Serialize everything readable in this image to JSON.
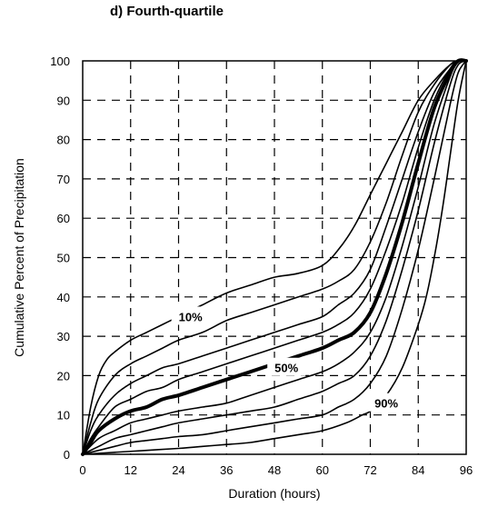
{
  "chart_data": {
    "type": "line",
    "title": "d) Fourth-quartile",
    "xlabel": "Duration (hours)",
    "ylabel": "Cumulative Percent of Precipitation",
    "xlim": [
      0,
      96
    ],
    "ylim": [
      0,
      100
    ],
    "x_ticks": [
      "0",
      "12",
      "24",
      "36",
      "48",
      "60",
      "72",
      "84",
      "96"
    ],
    "y_ticks": [
      "0",
      "10",
      "20",
      "30",
      "40",
      "50",
      "60",
      "70",
      "80",
      "90",
      "100"
    ],
    "grid": "dashed",
    "curve_labels": [
      {
        "text": "10%",
        "series": 0,
        "x": 27,
        "y": 35
      },
      {
        "text": "50%",
        "series": 4,
        "x": 51,
        "y": 22
      },
      {
        "text": "90%",
        "series": 8,
        "x": 76,
        "y": 13
      }
    ],
    "series": [
      {
        "x": [
          0,
          2,
          4,
          6,
          8,
          12,
          16,
          20,
          24,
          30,
          36,
          42,
          48,
          54,
          60,
          64,
          68,
          72,
          76,
          80,
          84,
          88,
          92,
          94,
          96
        ],
        "y": [
          0,
          12,
          20,
          24,
          26,
          29,
          31,
          33,
          35,
          38,
          41,
          43,
          45,
          46,
          48,
          52,
          58,
          66,
          74,
          82,
          90,
          95,
          99,
          100,
          100
        ]
      },
      {
        "x": [
          0,
          2,
          4,
          8,
          12,
          16,
          20,
          24,
          30,
          36,
          42,
          48,
          54,
          60,
          64,
          68,
          72,
          76,
          80,
          84,
          88,
          92,
          94,
          96
        ],
        "y": [
          0,
          8,
          14,
          20,
          23,
          25,
          27,
          29,
          31,
          34,
          36,
          38,
          40,
          42,
          44,
          47,
          54,
          64,
          76,
          87,
          94,
          99,
          100,
          100
        ]
      },
      {
        "x": [
          0,
          2,
          4,
          8,
          12,
          16,
          20,
          24,
          30,
          36,
          42,
          48,
          54,
          60,
          64,
          68,
          72,
          76,
          80,
          84,
          88,
          92,
          94,
          96
        ],
        "y": [
          0,
          6,
          10,
          15,
          18,
          20,
          22,
          23,
          25,
          27,
          29,
          31,
          33,
          35,
          38,
          41,
          47,
          58,
          70,
          82,
          92,
          98,
          100,
          100
        ]
      },
      {
        "x": [
          0,
          2,
          4,
          8,
          12,
          16,
          20,
          24,
          30,
          36,
          42,
          48,
          54,
          60,
          64,
          68,
          72,
          76,
          80,
          84,
          88,
          92,
          94,
          96
        ],
        "y": [
          0,
          4,
          7,
          12,
          14,
          16,
          17,
          19,
          21,
          23,
          25,
          27,
          29,
          31,
          33,
          36,
          42,
          52,
          64,
          78,
          90,
          98,
          100,
          100
        ]
      },
      {
        "x": [
          0,
          2,
          4,
          8,
          12,
          16,
          20,
          24,
          30,
          36,
          42,
          48,
          54,
          60,
          64,
          68,
          72,
          76,
          80,
          84,
          88,
          92,
          94,
          96
        ],
        "y": [
          0,
          3,
          6,
          9,
          11,
          12,
          14,
          15,
          17,
          19,
          21,
          23,
          25,
          27,
          29,
          31,
          36,
          46,
          59,
          74,
          88,
          97,
          100,
          100
        ]
      },
      {
        "x": [
          0,
          4,
          8,
          12,
          16,
          20,
          24,
          30,
          36,
          42,
          48,
          54,
          60,
          64,
          68,
          72,
          76,
          80,
          84,
          88,
          92,
          94,
          96
        ],
        "y": [
          0,
          4,
          6,
          8,
          9,
          10,
          11,
          12,
          13,
          15,
          17,
          19,
          21,
          23,
          26,
          31,
          40,
          53,
          68,
          84,
          96,
          100,
          100
        ]
      },
      {
        "x": [
          0,
          4,
          8,
          12,
          16,
          20,
          24,
          30,
          36,
          42,
          48,
          54,
          60,
          64,
          68,
          72,
          76,
          80,
          84,
          88,
          92,
          94,
          96
        ],
        "y": [
          0,
          2,
          4,
          5,
          6,
          7,
          8,
          9,
          10,
          11,
          12,
          14,
          16,
          18,
          20,
          25,
          34,
          47,
          62,
          79,
          94,
          99,
          100
        ]
      },
      {
        "x": [
          0,
          4,
          8,
          12,
          16,
          20,
          24,
          30,
          36,
          42,
          48,
          54,
          60,
          64,
          68,
          72,
          76,
          80,
          84,
          88,
          92,
          94,
          96
        ],
        "y": [
          0,
          1,
          2,
          3,
          3.5,
          4,
          4.5,
          5,
          6,
          7,
          8,
          9,
          10,
          12,
          14,
          18,
          25,
          37,
          52,
          70,
          89,
          97,
          100
        ]
      },
      {
        "x": [
          0,
          8,
          16,
          24,
          30,
          36,
          42,
          48,
          54,
          60,
          66,
          70,
          72,
          76,
          80,
          84,
          86,
          88,
          90,
          92,
          94,
          96
        ],
        "y": [
          0,
          0.5,
          1,
          1.5,
          2,
          2.5,
          3,
          4,
          5,
          6,
          8,
          10,
          11,
          15,
          22,
          33,
          40,
          50,
          62,
          76,
          90,
          100
        ]
      }
    ],
    "bold_series": 4
  }
}
